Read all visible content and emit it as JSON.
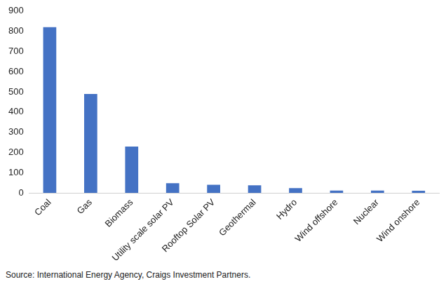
{
  "chart_data": {
    "type": "bar",
    "categories": [
      "Coal",
      "Gas",
      "Biomass",
      "Utility scale solar PV",
      "Rooftop Solar PV",
      "Geothermal",
      "Hydro",
      "Wind offshore",
      "Nuclear",
      "Wind onshore"
    ],
    "values": [
      820,
      490,
      230,
      48,
      41,
      38,
      24,
      12,
      12,
      11
    ],
    "color": "#4472c4",
    "ylim": [
      0,
      900
    ],
    "yticks": [
      0,
      100,
      200,
      300,
      400,
      500,
      600,
      700,
      800,
      900
    ],
    "grid": false,
    "source": "Source: International Energy Agency, Craigs Investment Partners."
  }
}
